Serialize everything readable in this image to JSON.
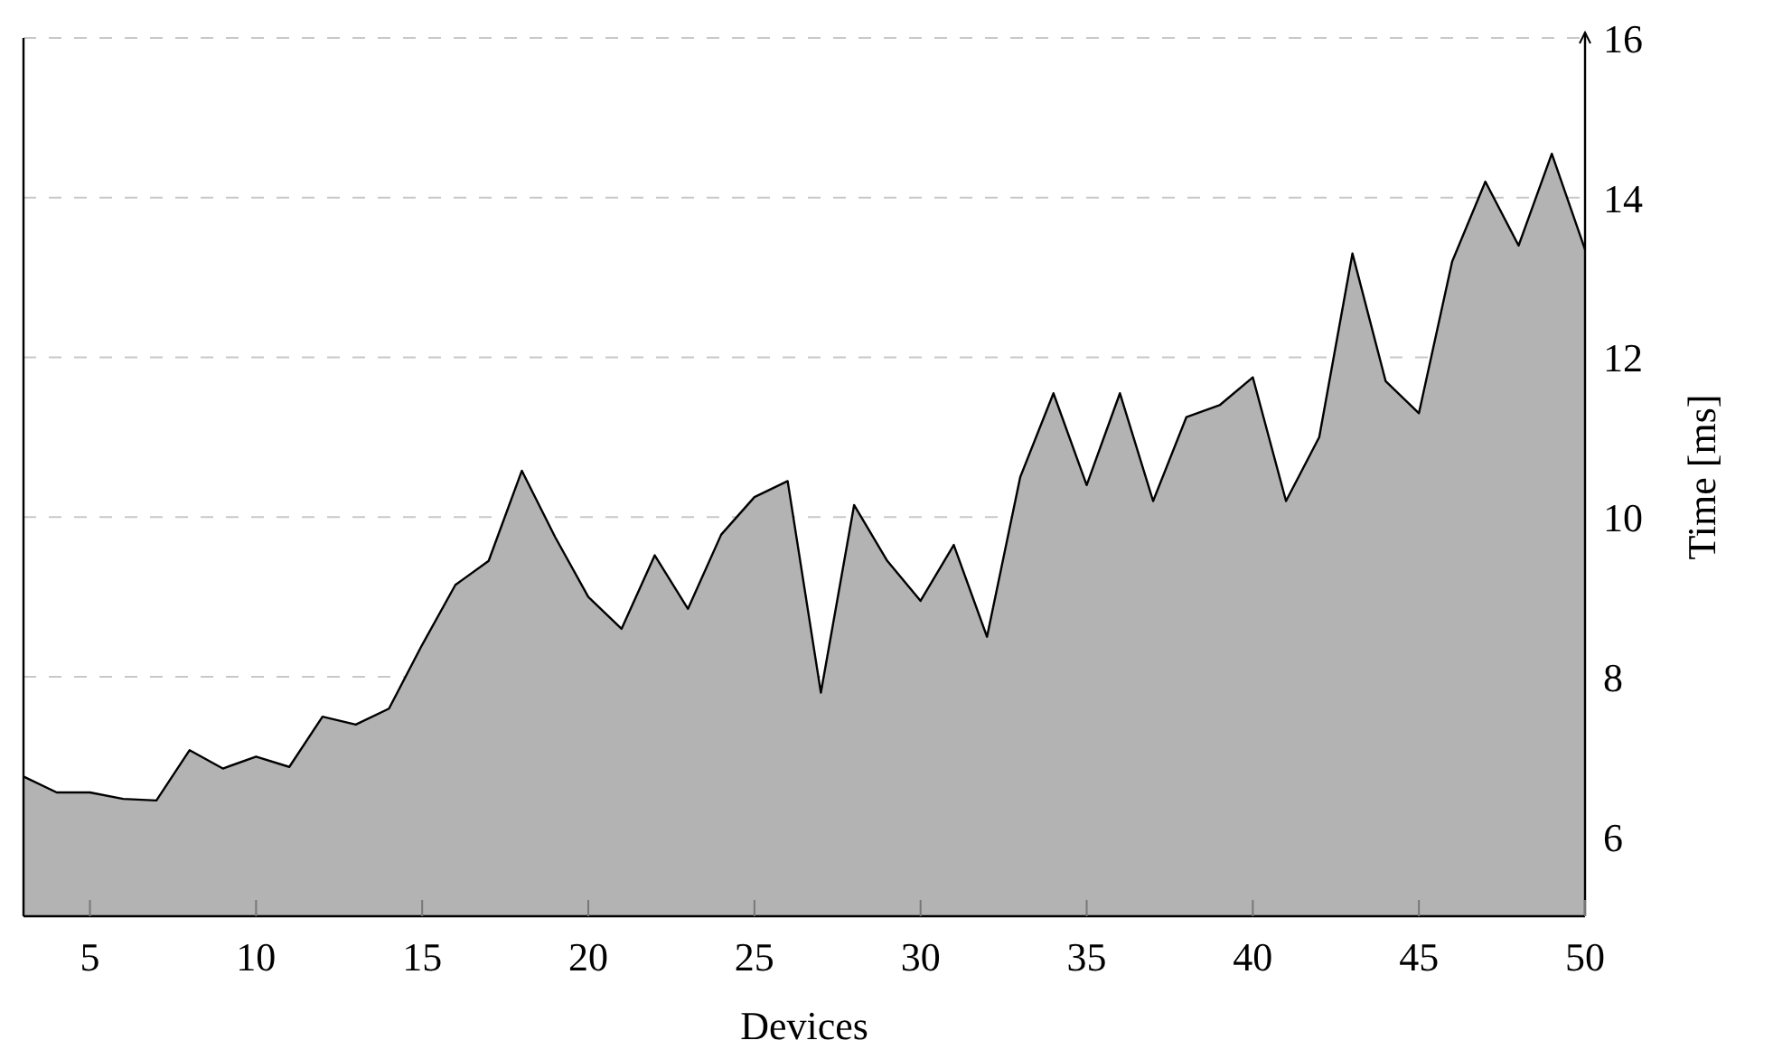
{
  "chart_data": {
    "type": "area",
    "xlabel": "Devices",
    "ylabel": "Time [ms]",
    "x": [
      3,
      4,
      5,
      6,
      7,
      8,
      9,
      10,
      11,
      12,
      13,
      14,
      15,
      16,
      17,
      18,
      19,
      20,
      21,
      22,
      23,
      24,
      25,
      26,
      27,
      28,
      29,
      30,
      31,
      32,
      33,
      34,
      35,
      36,
      37,
      38,
      39,
      40,
      41,
      42,
      43,
      44,
      45,
      46,
      47,
      48,
      49,
      50
    ],
    "series": [
      {
        "color": "#b3b3b3",
        "values": [
          6.75,
          6.55,
          6.55,
          6.47,
          6.45,
          7.08,
          6.85,
          7.0,
          6.87,
          7.5,
          7.4,
          7.6,
          8.4,
          9.15,
          9.45,
          10.58,
          9.75,
          9.0,
          8.6,
          9.52,
          8.85,
          9.78,
          10.25,
          10.45,
          7.8,
          10.15,
          9.45,
          8.95,
          9.65,
          8.5,
          10.5,
          11.55,
          10.4,
          11.55,
          10.2,
          11.25,
          11.4,
          11.75,
          10.2,
          11.0,
          13.3,
          11.7,
          11.3,
          13.2,
          14.2,
          13.4,
          14.55,
          13.35
        ]
      }
    ],
    "xlim": [
      3,
      50
    ],
    "xticks": [
      5,
      10,
      15,
      20,
      25,
      30,
      35,
      40,
      45,
      50
    ],
    "ylim": [
      5,
      16
    ],
    "yticks": [
      6,
      8,
      10,
      12,
      14,
      16
    ],
    "grid": "y"
  }
}
